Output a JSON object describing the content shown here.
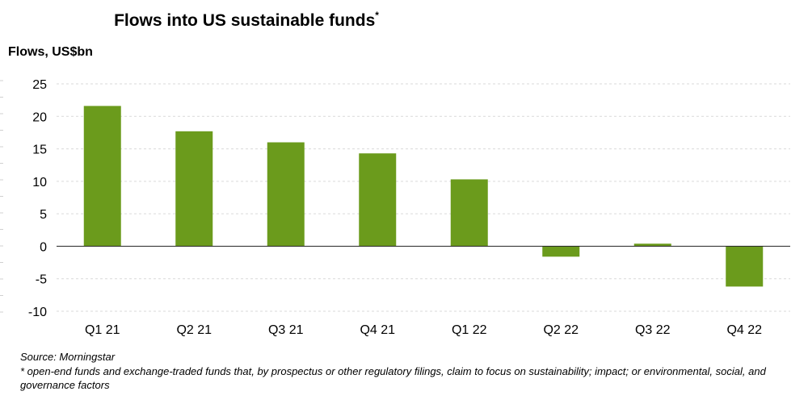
{
  "chart_data": {
    "type": "bar",
    "title": "Flows into US sustainable funds",
    "title_marker": "*",
    "xlabel": "",
    "ylabel": "Flows, US$bn",
    "categories": [
      "Q1 21",
      "Q2 21",
      "Q3 21",
      "Q4 21",
      "Q1 22",
      "Q2 22",
      "Q3 22",
      "Q4 22"
    ],
    "values": [
      21.6,
      17.7,
      16.0,
      14.3,
      10.3,
      -1.6,
      0.4,
      -6.2
    ],
    "ylim": [
      -10,
      25
    ],
    "yticks": [
      25,
      20,
      15,
      10,
      5,
      0,
      -5,
      -10
    ],
    "grid": true,
    "bar_color": "#6b9b1c"
  },
  "footer": {
    "source": "Source: Morningstar",
    "note": "* open-end funds and exchange-traded funds that, by prospectus or other regulatory filings, claim to focus on sustainability; impact; or environmental, social, and governance factors"
  }
}
